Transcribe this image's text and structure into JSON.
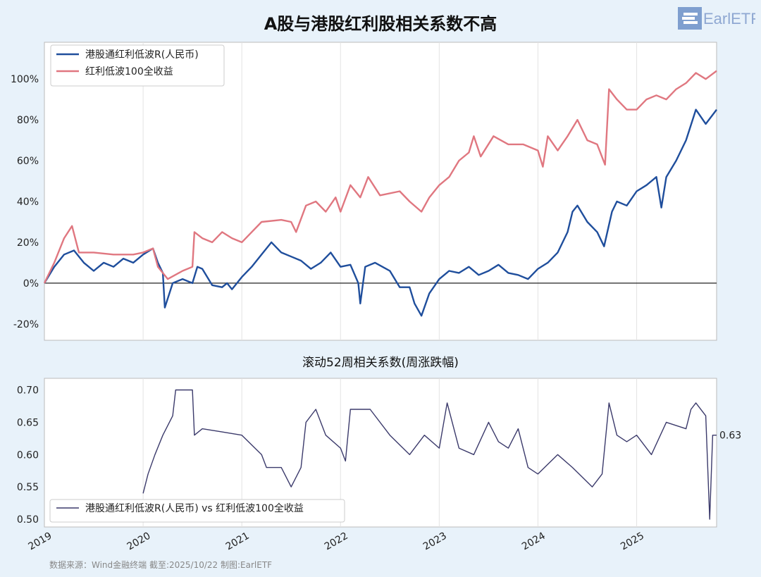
{
  "title": "A股与港股红利股相关系数不高",
  "logo_text": "EarlETF",
  "source": "数据来源：Wind金融终端 截至:2025/10/22 制图:EarlETF",
  "colors": {
    "background": "#e8f2fa",
    "blue": "#1f4e9c",
    "red": "#e07780",
    "corr": "#3b3a6b"
  },
  "chart_data": [
    {
      "type": "line",
      "title": "A股与港股红利股相关系数不高",
      "ylim": [
        -28,
        118
      ],
      "yticks": [
        -20,
        0,
        20,
        40,
        60,
        80,
        100
      ],
      "ytick_labels": [
        "-20%",
        "0%",
        "20%",
        "40%",
        "60%",
        "80%",
        "100%"
      ],
      "xlim": [
        2019.0,
        2025.81
      ],
      "xticks": [
        2019,
        2020,
        2021,
        2022,
        2023,
        2024,
        2025
      ],
      "xtick_labels": [
        "2019",
        "2020",
        "2021",
        "2022",
        "2023",
        "2024",
        "2025"
      ],
      "grid": "vertical",
      "legend": "top-left",
      "series": [
        {
          "name": "港股通红利低波R(人民币)",
          "color": "#1f4e9c",
          "x": [
            2019.0,
            2019.1,
            2019.2,
            2019.3,
            2019.4,
            2019.5,
            2019.6,
            2019.7,
            2019.8,
            2019.9,
            2020.0,
            2020.1,
            2020.15,
            2020.2,
            2020.22,
            2020.3,
            2020.4,
            2020.5,
            2020.55,
            2020.6,
            2020.7,
            2020.8,
            2020.85,
            2020.9,
            2021.0,
            2021.1,
            2021.2,
            2021.3,
            2021.4,
            2021.5,
            2021.6,
            2021.7,
            2021.8,
            2021.9,
            2022.0,
            2022.1,
            2022.18,
            2022.2,
            2022.25,
            2022.35,
            2022.5,
            2022.6,
            2022.7,
            2022.75,
            2022.82,
            2022.9,
            2023.0,
            2023.1,
            2023.2,
            2023.3,
            2023.4,
            2023.5,
            2023.6,
            2023.7,
            2023.8,
            2023.9,
            2024.0,
            2024.1,
            2024.2,
            2024.3,
            2024.35,
            2024.4,
            2024.5,
            2024.6,
            2024.67,
            2024.75,
            2024.8,
            2024.9,
            2025.0,
            2025.1,
            2025.2,
            2025.25,
            2025.3,
            2025.4,
            2025.5,
            2025.6,
            2025.7,
            2025.81
          ],
          "y": [
            0,
            8,
            14,
            16,
            10,
            6,
            10,
            8,
            12,
            10,
            14,
            17,
            10,
            5,
            -12,
            0,
            2,
            0,
            8,
            7,
            -1,
            -2,
            0,
            -3,
            3,
            8,
            14,
            20,
            15,
            13,
            11,
            7,
            10,
            15,
            8,
            9,
            0,
            -10,
            8,
            10,
            6,
            -2,
            -2,
            -10,
            -16,
            -5,
            2,
            6,
            5,
            8,
            4,
            6,
            9,
            5,
            4,
            2,
            7,
            10,
            15,
            25,
            35,
            38,
            30,
            25,
            18,
            35,
            40,
            38,
            45,
            48,
            52,
            37,
            52,
            60,
            70,
            85,
            78,
            85
          ]
        },
        {
          "name": "红利低波100全收益",
          "color": "#e07780",
          "x": [
            2019.0,
            2019.1,
            2019.2,
            2019.28,
            2019.35,
            2019.5,
            2019.7,
            2019.9,
            2020.0,
            2020.1,
            2020.15,
            2020.25,
            2020.4,
            2020.5,
            2020.52,
            2020.6,
            2020.7,
            2020.8,
            2020.9,
            2021.0,
            2021.1,
            2021.2,
            2021.4,
            2021.5,
            2021.55,
            2021.65,
            2021.75,
            2021.85,
            2021.95,
            2022.0,
            2022.1,
            2022.2,
            2022.28,
            2022.4,
            2022.6,
            2022.7,
            2022.82,
            2022.9,
            2023.0,
            2023.1,
            2023.2,
            2023.3,
            2023.35,
            2023.42,
            2023.55,
            2023.7,
            2023.85,
            2024.0,
            2024.05,
            2024.1,
            2024.2,
            2024.3,
            2024.4,
            2024.5,
            2024.6,
            2024.68,
            2024.72,
            2024.8,
            2024.9,
            2025.0,
            2025.1,
            2025.2,
            2025.3,
            2025.4,
            2025.5,
            2025.6,
            2025.7,
            2025.81
          ],
          "y": [
            0,
            10,
            22,
            28,
            15,
            15,
            14,
            14,
            15,
            17,
            8,
            2,
            6,
            8,
            25,
            22,
            20,
            25,
            22,
            20,
            25,
            30,
            31,
            30,
            25,
            38,
            40,
            35,
            42,
            35,
            48,
            42,
            52,
            43,
            45,
            40,
            35,
            42,
            48,
            52,
            60,
            64,
            72,
            62,
            72,
            68,
            68,
            65,
            57,
            72,
            65,
            72,
            80,
            70,
            68,
            58,
            95,
            90,
            85,
            85,
            90,
            92,
            90,
            95,
            98,
            103,
            100,
            104
          ]
        }
      ],
      "baseline": 0
    },
    {
      "type": "line",
      "title": "滚动52周相关系数(周涨跌幅)",
      "ylim": [
        0.488,
        0.718
      ],
      "yticks": [
        0.5,
        0.55,
        0.6,
        0.65,
        0.7
      ],
      "ytick_labels": [
        "0.50",
        "0.55",
        "0.60",
        "0.65",
        "0.70"
      ],
      "xlim": [
        2019.0,
        2025.81
      ],
      "grid": "vertical",
      "legend": "bottom-left",
      "end_label": "0.63",
      "series": [
        {
          "name": "港股通红利低波R(人民币) vs 红利低波100全收益",
          "color": "#3b3a6b",
          "x": [
            2020.0,
            2020.05,
            2020.12,
            2020.2,
            2020.3,
            2020.33,
            2020.5,
            2020.52,
            2020.6,
            2020.8,
            2021.0,
            2021.2,
            2021.25,
            2021.4,
            2021.5,
            2021.6,
            2021.65,
            2021.75,
            2021.85,
            2022.0,
            2022.05,
            2022.1,
            2022.3,
            2022.5,
            2022.7,
            2022.85,
            2023.0,
            2023.08,
            2023.2,
            2023.35,
            2023.5,
            2023.6,
            2023.7,
            2023.8,
            2023.9,
            2024.0,
            2024.2,
            2024.35,
            2024.55,
            2024.65,
            2024.72,
            2024.8,
            2024.9,
            2025.0,
            2025.15,
            2025.3,
            2025.5,
            2025.55,
            2025.6,
            2025.7,
            2025.74,
            2025.77,
            2025.81
          ],
          "y": [
            0.54,
            0.57,
            0.6,
            0.63,
            0.66,
            0.7,
            0.7,
            0.63,
            0.64,
            0.635,
            0.63,
            0.6,
            0.58,
            0.58,
            0.55,
            0.58,
            0.65,
            0.67,
            0.63,
            0.61,
            0.59,
            0.67,
            0.67,
            0.63,
            0.6,
            0.63,
            0.61,
            0.68,
            0.61,
            0.6,
            0.65,
            0.62,
            0.61,
            0.64,
            0.58,
            0.57,
            0.6,
            0.58,
            0.55,
            0.57,
            0.68,
            0.63,
            0.62,
            0.63,
            0.6,
            0.65,
            0.64,
            0.67,
            0.68,
            0.66,
            0.5,
            0.63,
            0.63
          ]
        }
      ]
    }
  ]
}
